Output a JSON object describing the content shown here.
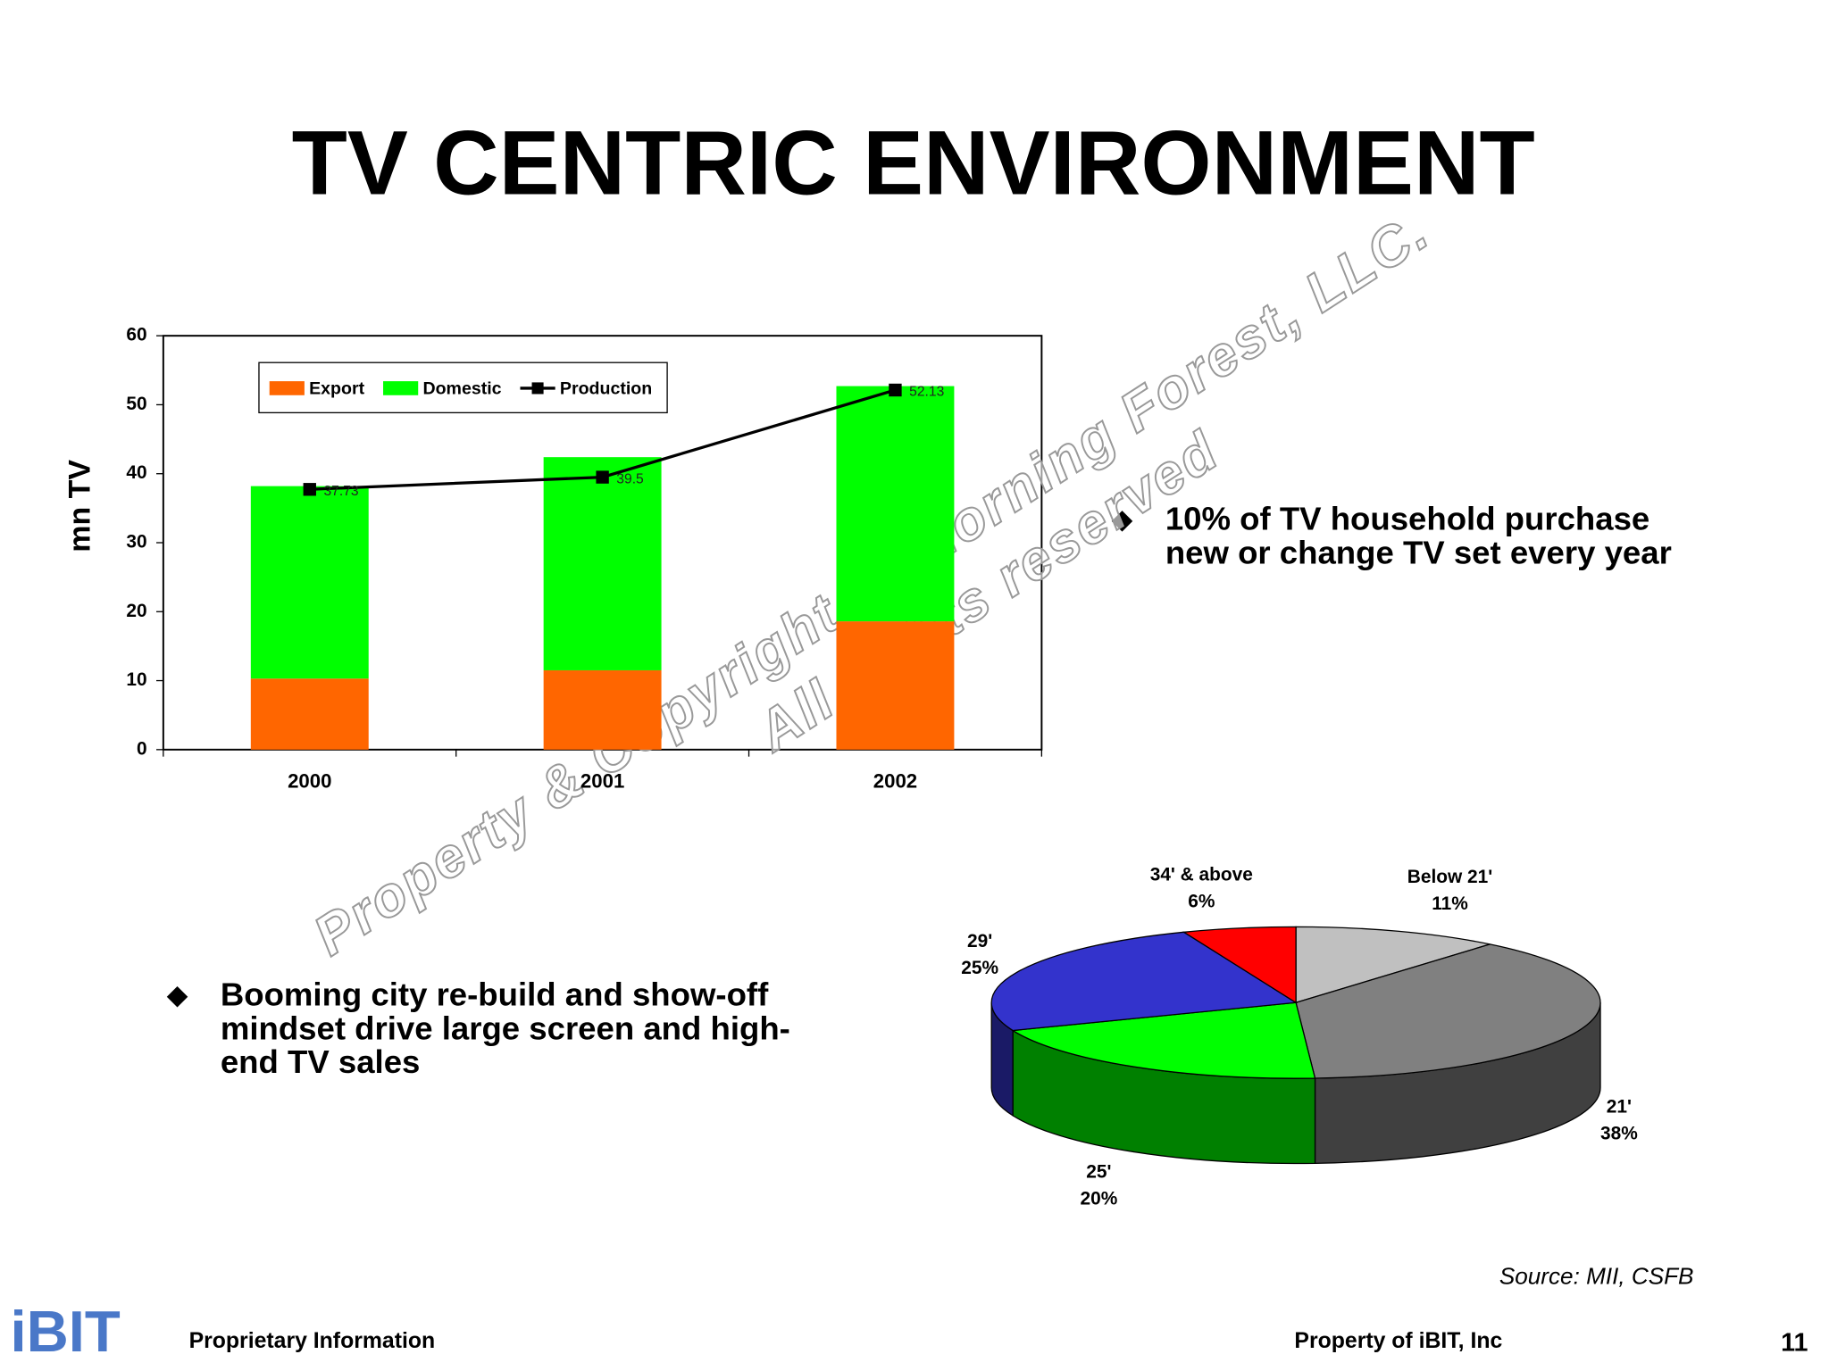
{
  "title": "TV CENTRIC ENVIRONMENT",
  "chart_data": [
    {
      "type": "bar",
      "stacked": true,
      "ylabel": "mn TV",
      "categories": [
        "2000",
        "2001",
        "2002"
      ],
      "series": [
        {
          "name": "Export",
          "color": "#ff6600",
          "values": [
            10.3,
            11.5,
            18.6
          ]
        },
        {
          "name": "Domestic",
          "color": "#00ff00",
          "values": [
            27.9,
            30.9,
            34.1
          ]
        },
        {
          "name": "Production",
          "type": "line",
          "color": "#000000",
          "values": [
            37.73,
            39.5,
            52.13
          ]
        }
      ],
      "ylim": [
        0,
        60
      ],
      "yticks": [
        0,
        10,
        20,
        30,
        40,
        50,
        60
      ],
      "legend": "top-left"
    },
    {
      "type": "pie",
      "categories": [
        "Below 21'",
        "21'",
        "25'",
        "29'",
        "34' & above"
      ],
      "values": [
        11,
        38,
        20,
        25,
        6
      ],
      "value_labels": [
        "11%",
        "38%",
        "20%",
        "25%",
        "6%"
      ],
      "colors": [
        "#c0c0c0",
        "#808080",
        "#00ff00",
        "#3333cc",
        "#ff0000"
      ]
    }
  ],
  "bullets": [
    {
      "lines": [
        "10% of TV household purchase",
        "new or change TV set every year"
      ]
    },
    {
      "lines": [
        "Booming city re-build and show-off",
        "mindset drive large screen and high-",
        "end TV sales"
      ]
    }
  ],
  "watermark": [
    "Property & Copyright of Morning Forest, LLC.",
    "All rights reserved"
  ],
  "source": "Source: MII, CSFB",
  "footer": {
    "logo": "iBIT",
    "left": "Proprietary Information",
    "right": "Property of iBIT, Inc",
    "page": "11"
  }
}
